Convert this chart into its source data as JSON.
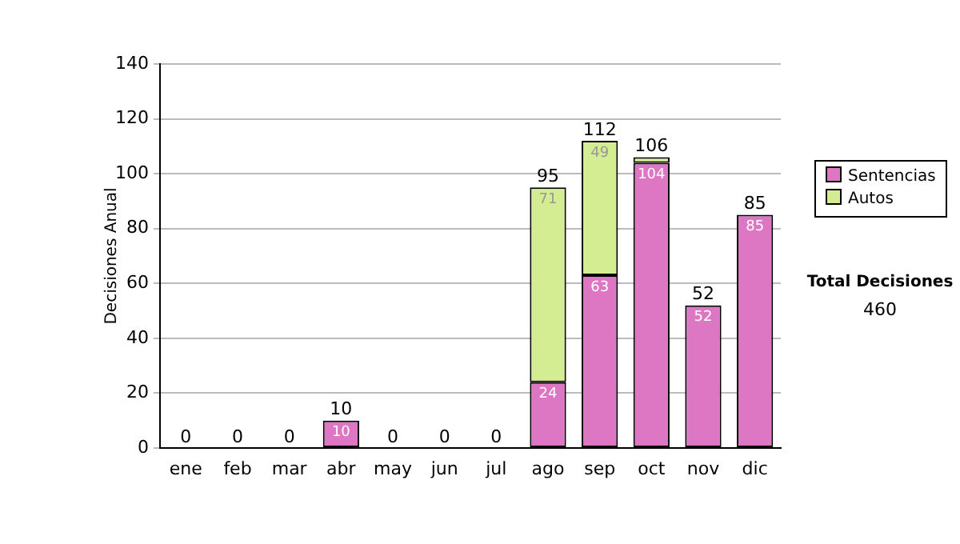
{
  "chart_data": {
    "type": "bar",
    "ylabel": "Decisiones Anual",
    "categories": [
      "ene",
      "feb",
      "mar",
      "abr",
      "may",
      "jun",
      "jul",
      "ago",
      "sep",
      "oct",
      "nov",
      "dic"
    ],
    "series": [
      {
        "name": "Sentencias",
        "color": "#dd77c4",
        "values": [
          0,
          0,
          0,
          10,
          0,
          0,
          0,
          24,
          63,
          104,
          52,
          85
        ],
        "value_labels": [
          null,
          null,
          null,
          "10",
          null,
          null,
          null,
          "24",
          "63",
          "104",
          "52",
          "85"
        ]
      },
      {
        "name": "Autos",
        "color": "#d4ec92",
        "values": [
          0,
          0,
          0,
          0,
          0,
          0,
          0,
          71,
          49,
          2,
          0,
          0
        ],
        "value_labels": [
          null,
          null,
          null,
          null,
          null,
          null,
          null,
          "71",
          "49",
          null,
          null,
          null
        ]
      }
    ],
    "stacked": true,
    "totals": [
      "0",
      "0",
      "0",
      "10",
      "0",
      "0",
      "0",
      "95",
      "112",
      "106",
      "52",
      "85"
    ],
    "ylim": [
      0,
      140
    ],
    "yticks": [
      0,
      20,
      40,
      60,
      80,
      100,
      120,
      140
    ],
    "grid": "y",
    "legend": "right",
    "annotations": [
      "Total Decisiones",
      "460"
    ]
  }
}
